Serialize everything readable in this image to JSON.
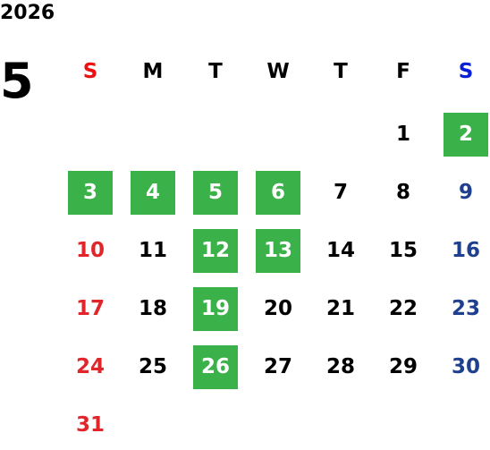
{
  "year": "2026",
  "month": "5",
  "weekdays": [
    "S",
    "M",
    "T",
    "W",
    "T",
    "F",
    "S"
  ],
  "weeks": [
    [
      null,
      null,
      null,
      null,
      null,
      {
        "day": 1,
        "highlight": false
      },
      {
        "day": 2,
        "highlight": true
      }
    ],
    [
      {
        "day": 3,
        "highlight": true
      },
      {
        "day": 4,
        "highlight": true
      },
      {
        "day": 5,
        "highlight": true
      },
      {
        "day": 6,
        "highlight": true
      },
      {
        "day": 7,
        "highlight": false
      },
      {
        "day": 8,
        "highlight": false
      },
      {
        "day": 9,
        "highlight": false
      }
    ],
    [
      {
        "day": 10,
        "highlight": false
      },
      {
        "day": 11,
        "highlight": false
      },
      {
        "day": 12,
        "highlight": true
      },
      {
        "day": 13,
        "highlight": true
      },
      {
        "day": 14,
        "highlight": false
      },
      {
        "day": 15,
        "highlight": false
      },
      {
        "day": 16,
        "highlight": false
      }
    ],
    [
      {
        "day": 17,
        "highlight": false
      },
      {
        "day": 18,
        "highlight": false
      },
      {
        "day": 19,
        "highlight": true
      },
      {
        "day": 20,
        "highlight": false
      },
      {
        "day": 21,
        "highlight": false
      },
      {
        "day": 22,
        "highlight": false
      },
      {
        "day": 23,
        "highlight": false
      }
    ],
    [
      {
        "day": 24,
        "highlight": false
      },
      {
        "day": 25,
        "highlight": false
      },
      {
        "day": 26,
        "highlight": true
      },
      {
        "day": 27,
        "highlight": false
      },
      {
        "day": 28,
        "highlight": false
      },
      {
        "day": 29,
        "highlight": false
      },
      {
        "day": 30,
        "highlight": false
      }
    ],
    [
      {
        "day": 31,
        "highlight": false
      },
      null,
      null,
      null,
      null,
      null,
      null
    ]
  ]
}
